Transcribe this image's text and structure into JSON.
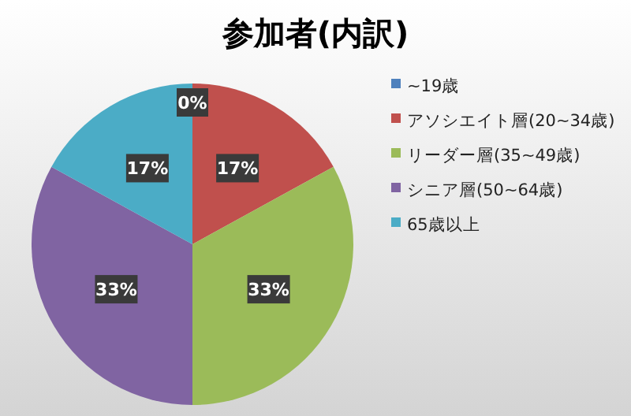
{
  "chart_data": {
    "type": "pie",
    "title": "参加者(内訳)",
    "categories": [
      "~19歳",
      "アソシエイト層(20~34歳)",
      "リーダー層(35~49歳)",
      "シニア層(50~64歳)",
      "65歳以上"
    ],
    "values": [
      0,
      17,
      33,
      33,
      17
    ],
    "value_labels": [
      "0%",
      "17%",
      "33%",
      "33%",
      "17%"
    ],
    "colors": [
      "#4f81bd",
      "#c0504d",
      "#9bbb59",
      "#8064a2",
      "#4bacc6"
    ],
    "legend": "right"
  }
}
